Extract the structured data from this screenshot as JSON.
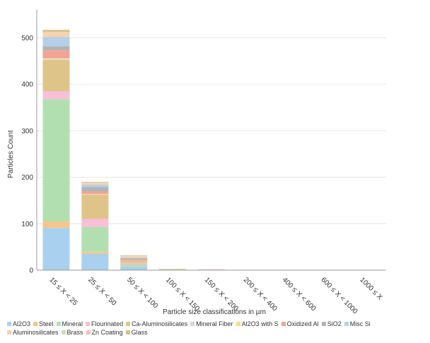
{
  "chart_data": {
    "type": "bar",
    "stacked": true,
    "xlabel": "Particle size classifications in µm",
    "ylabel": "Particles Count",
    "ylim": [
      0,
      560
    ],
    "yticks": [
      0,
      100,
      200,
      300,
      400,
      500
    ],
    "grid": true,
    "legend_position": "bottom",
    "categories": [
      "15 ≤ X < 25",
      "25 ≤ X < 50",
      "50 ≤ X < 100",
      "100 ≤ X < 150",
      "150 ≤ X < 200",
      "200 ≤ X < 400",
      "400 ≤ X < 600",
      "600 ≤ X < 1000",
      "1000 ≤ X"
    ],
    "series": [
      {
        "name": "Al2O3",
        "color": "#a9d0ef",
        "values": [
          91,
          35,
          8,
          1,
          1,
          0,
          0,
          0,
          0
        ]
      },
      {
        "name": "Steel",
        "color": "#f6c58c",
        "values": [
          14,
          4,
          1,
          0,
          0,
          0,
          0,
          0,
          0
        ]
      },
      {
        "name": "Mineral",
        "color": "#b2dfb0",
        "values": [
          263,
          54,
          4,
          1,
          0,
          0,
          0,
          0,
          0
        ]
      },
      {
        "name": "Flourinated",
        "color": "#f7bfd8",
        "values": [
          17,
          17,
          3,
          0,
          1,
          0,
          0,
          0,
          0
        ]
      },
      {
        "name": "Ca-Aluminosilicates",
        "color": "#dfc48a",
        "values": [
          67,
          52,
          5,
          1,
          0,
          0,
          0,
          0,
          0
        ]
      },
      {
        "name": "Mineral Fiber",
        "color": "#d6d6d6",
        "values": [
          2,
          1,
          0,
          0,
          0,
          0,
          0,
          0,
          0
        ]
      },
      {
        "name": "Al2O3 with S",
        "color": "#f6dd82",
        "values": [
          2,
          1,
          0,
          0,
          0,
          0,
          0,
          0,
          0
        ]
      },
      {
        "name": "Oxidized Al",
        "color": "#f2a394",
        "values": [
          17,
          5,
          2,
          0,
          0,
          0,
          0,
          0,
          0
        ]
      },
      {
        "name": "SiO2",
        "color": "#b3b3b3",
        "values": [
          9,
          10,
          3,
          0,
          0,
          0,
          0,
          0,
          0
        ]
      },
      {
        "name": "Misc Si",
        "color": "#b6cfe8",
        "values": [
          20,
          5,
          1,
          0,
          0,
          0,
          0,
          0,
          0
        ]
      },
      {
        "name": "Aluminosilicates",
        "color": "#f9d2a8",
        "values": [
          9,
          3,
          2,
          0,
          0,
          0,
          0,
          0,
          0
        ]
      },
      {
        "name": "Brass",
        "color": "#c9e3b6",
        "values": [
          1,
          1,
          1,
          0,
          0,
          0,
          0,
          0,
          0
        ]
      },
      {
        "name": "Zn Coating",
        "color": "#f5c0c0",
        "values": [
          1,
          1,
          1,
          0,
          0,
          0,
          0,
          0,
          0
        ]
      },
      {
        "name": "Glass",
        "color": "#d0c08a",
        "values": [
          4,
          1,
          1,
          0,
          0,
          0,
          0,
          0,
          0
        ]
      }
    ]
  }
}
